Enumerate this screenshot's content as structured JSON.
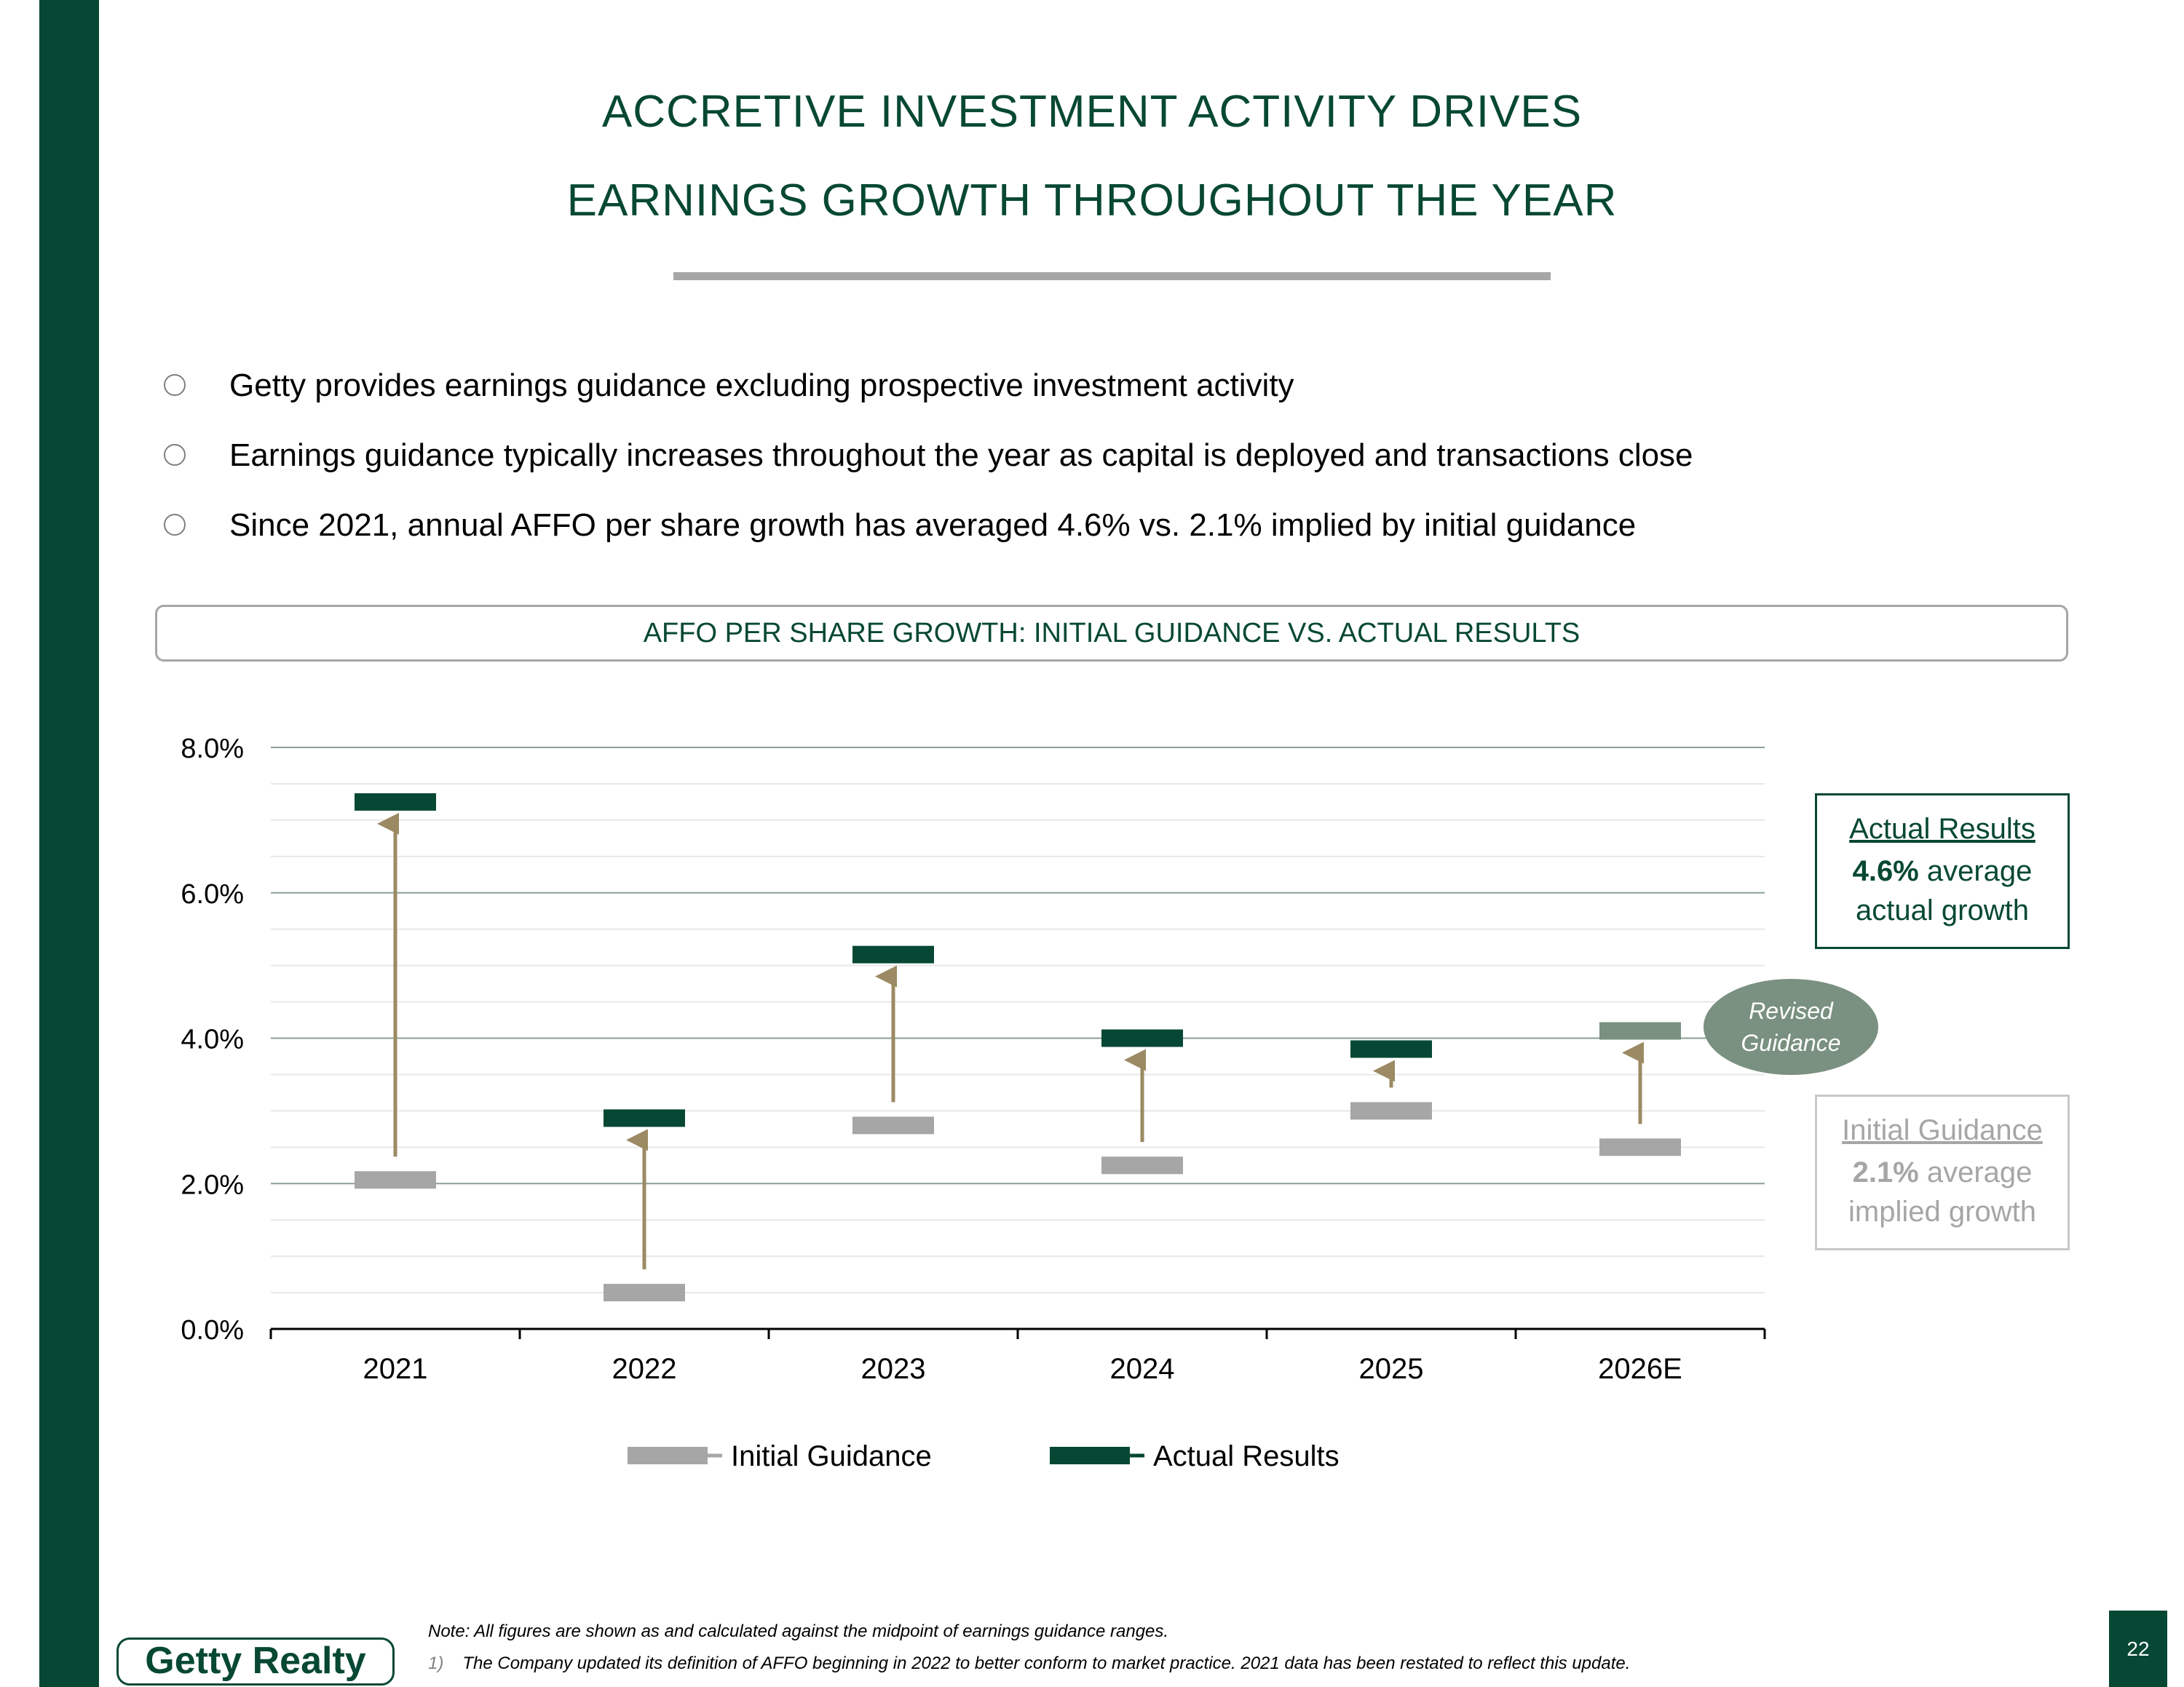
{
  "slide": {
    "title_line1": "ACCRETIVE INVESTMENT ACTIVITY DRIVES",
    "title_line2": "EARNINGS GROWTH THROUGHOUT THE YEAR",
    "bullets": [
      "Getty provides earnings guidance excluding prospective investment activity",
      "Earnings guidance typically increases throughout the year as capital is deployed and transactions close",
      "Since 2021, annual AFFO per share growth has averaged 4.6% vs. 2.1% implied by initial guidance"
    ],
    "chart_header": "AFFO PER SHARE GROWTH: INITIAL GUIDANCE VS. ACTUAL RESULTS",
    "callout_actual": {
      "title": "Actual Results",
      "value": "4.6%",
      "line1_rest": " average",
      "line2": "actual growth"
    },
    "callout_initial": {
      "title": "Initial Guidance",
      "value": "2.1%",
      "line1_rest": " average",
      "line2": "implied growth"
    },
    "revised_badge": {
      "line1": "Revised",
      "line2": "Guidance"
    },
    "logo_text": "Getty Realty",
    "note": "Note: All figures are shown as and calculated against the midpoint of earnings guidance ranges.",
    "footnote_number": "1)",
    "footnote": "The Company updated its definition of AFFO beginning in 2022 to better conform to market practice. 2021 data has been restated to reflect this update.",
    "page_number": "22"
  },
  "colors": {
    "brand_green": "#074834",
    "initial_gray": "#a6a6a6",
    "revised_gray_green": "#7a9080",
    "arrow_tan": "#9b8a63",
    "major_grid": "#8aa093",
    "minor_grid": "#e8e8e8"
  },
  "chart_data": {
    "type": "scatter",
    "title": "AFFO PER SHARE GROWTH: INITIAL GUIDANCE VS. ACTUAL RESULTS",
    "categories": [
      "2021",
      "2022",
      "2023",
      "2024",
      "2025",
      "2026E"
    ],
    "series": [
      {
        "name": "Initial Guidance",
        "values": [
          2.05,
          0.5,
          2.8,
          2.25,
          3.0,
          2.5
        ]
      },
      {
        "name": "Actual Results",
        "values": [
          7.25,
          2.9,
          5.15,
          4.0,
          3.85,
          null
        ]
      }
    ],
    "revised_guidance": {
      "category": "2026E",
      "value": 4.1,
      "label": "Revised Guidance"
    },
    "yticks": [
      "0.0%",
      "2.0%",
      "4.0%",
      "6.0%",
      "8.0%"
    ],
    "ylim": [
      0,
      8
    ],
    "grid": true,
    "legend_position": "bottom"
  }
}
